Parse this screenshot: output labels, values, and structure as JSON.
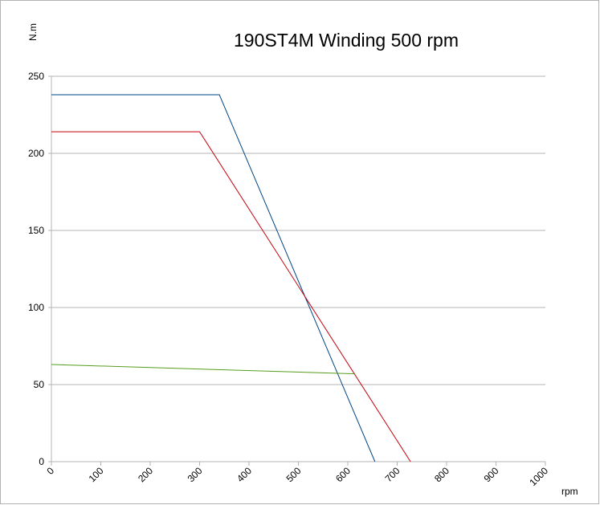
{
  "chart_data": {
    "type": "line",
    "title": "190ST4M Winding 500 rpm",
    "ylabel": "N.m",
    "xlabel": "rpm",
    "xlim": [
      0,
      1000
    ],
    "ylim": [
      0,
      250
    ],
    "x_ticks": [
      "0",
      "100",
      "200",
      "300",
      "400",
      "500",
      "600",
      "700",
      "800",
      "900",
      "1000"
    ],
    "y_ticks": [
      "0",
      "50",
      "100",
      "150",
      "200",
      "250"
    ],
    "grid": "horizontal",
    "series": [
      {
        "color": "#004586",
        "points": [
          [
            0,
            238
          ],
          [
            340,
            238
          ],
          [
            655,
            0
          ]
        ]
      },
      {
        "color": "#c5000b",
        "points": [
          [
            0,
            214
          ],
          [
            300,
            214
          ],
          [
            727,
            0
          ]
        ]
      },
      {
        "color": "#579d1c",
        "points": [
          [
            0,
            63
          ],
          [
            615,
            57
          ]
        ]
      }
    ]
  }
}
